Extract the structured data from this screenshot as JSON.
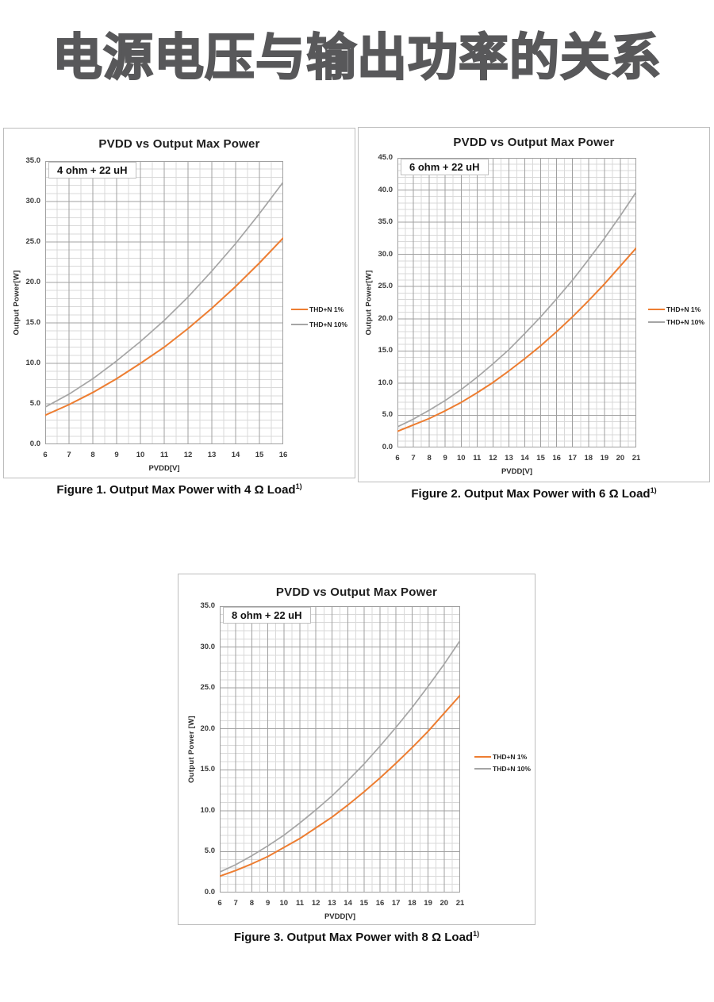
{
  "page_title": "电源电压与输出功率的关系",
  "colors": {
    "thd1_orange": "#ED7D31",
    "thd10_gray": "#A5A5A5",
    "grid_minor": "#D9D9D9",
    "grid_major": "#A0A0A0",
    "title_gray": "#58585A"
  },
  "chart_data": [
    {
      "type": "line",
      "title": "PVDD vs Output Max Power",
      "annotation": "4 ohm + 22 uH",
      "caption": "Figure 1. Output Max Power with 4 Ω Load",
      "caption_sup": "1)",
      "xlabel": "PVDD[V]",
      "ylabel": "Output Power[W]",
      "xlim": [
        6,
        16
      ],
      "ylim": [
        0,
        35
      ],
      "ytick_step": 5,
      "minor_x_step": 0.5,
      "minor_y_step": 1,
      "grid": "on",
      "legend_position": "right",
      "x": [
        6,
        7,
        8,
        9,
        10,
        11,
        12,
        13,
        14,
        15,
        16
      ],
      "series": [
        {
          "name": "THD+N 1%",
          "color": "#ED7D31",
          "values": [
            3.6,
            4.9,
            6.4,
            8.1,
            10.0,
            12.0,
            14.3,
            16.8,
            19.5,
            22.4,
            25.5
          ]
        },
        {
          "name": "THD+N 10%",
          "color": "#A5A5A5",
          "values": [
            4.6,
            6.2,
            8.1,
            10.3,
            12.7,
            15.3,
            18.2,
            21.4,
            24.8,
            28.5,
            32.4
          ]
        }
      ]
    },
    {
      "type": "line",
      "title": "PVDD vs Output Max Power",
      "annotation": "6 ohm + 22 uH",
      "caption": "Figure 2. Output Max Power with 6 Ω Load",
      "caption_sup": "1)",
      "xlabel": "PVDD[V]",
      "ylabel": "Output Power[W]",
      "xlim": [
        6,
        21
      ],
      "ylim": [
        0,
        45
      ],
      "ytick_step": 5,
      "minor_x_step": 0.5,
      "minor_y_step": 1,
      "grid": "on",
      "legend_position": "right",
      "x": [
        6,
        7,
        8,
        9,
        10,
        11,
        12,
        13,
        14,
        15,
        16,
        17,
        18,
        19,
        20,
        21
      ],
      "series": [
        {
          "name": "THD+N 1%",
          "color": "#ED7D31",
          "values": [
            2.5,
            3.5,
            4.5,
            5.7,
            7.0,
            8.5,
            10.1,
            11.9,
            13.8,
            15.8,
            18.0,
            20.3,
            22.8,
            25.4,
            28.2,
            31.0
          ]
        },
        {
          "name": "THD+N 10%",
          "color": "#A5A5A5",
          "values": [
            3.2,
            4.4,
            5.8,
            7.3,
            9.0,
            10.9,
            13.0,
            15.2,
            17.7,
            20.3,
            23.1,
            26.0,
            29.2,
            32.5,
            36.0,
            39.7
          ]
        }
      ]
    },
    {
      "type": "line",
      "title": "PVDD vs Output Max Power",
      "annotation": "8 ohm + 22 uH",
      "caption": "Figure 3. Output Max Power with 8 Ω Load",
      "caption_sup": "1)",
      "xlabel": "PVDD[V]",
      "ylabel": "Output Power [W]",
      "xlim": [
        6,
        21
      ],
      "ylim": [
        0,
        35
      ],
      "ytick_step": 5,
      "minor_x_step": 0.5,
      "minor_y_step": 1,
      "grid": "on",
      "legend_position": "right",
      "x": [
        6,
        7,
        8,
        9,
        10,
        11,
        12,
        13,
        14,
        15,
        16,
        17,
        18,
        19,
        20,
        21
      ],
      "series": [
        {
          "name": "THD+N 1%",
          "color": "#ED7D31",
          "values": [
            2.0,
            2.7,
            3.5,
            4.4,
            5.5,
            6.6,
            7.9,
            9.2,
            10.7,
            12.3,
            14.0,
            15.8,
            17.7,
            19.7,
            21.9,
            24.1
          ]
        },
        {
          "name": "THD+N 10%",
          "color": "#A5A5A5",
          "values": [
            2.5,
            3.4,
            4.5,
            5.7,
            7.0,
            8.5,
            10.1,
            11.8,
            13.7,
            15.7,
            17.9,
            20.2,
            22.6,
            25.2,
            27.9,
            30.8
          ]
        }
      ]
    }
  ]
}
